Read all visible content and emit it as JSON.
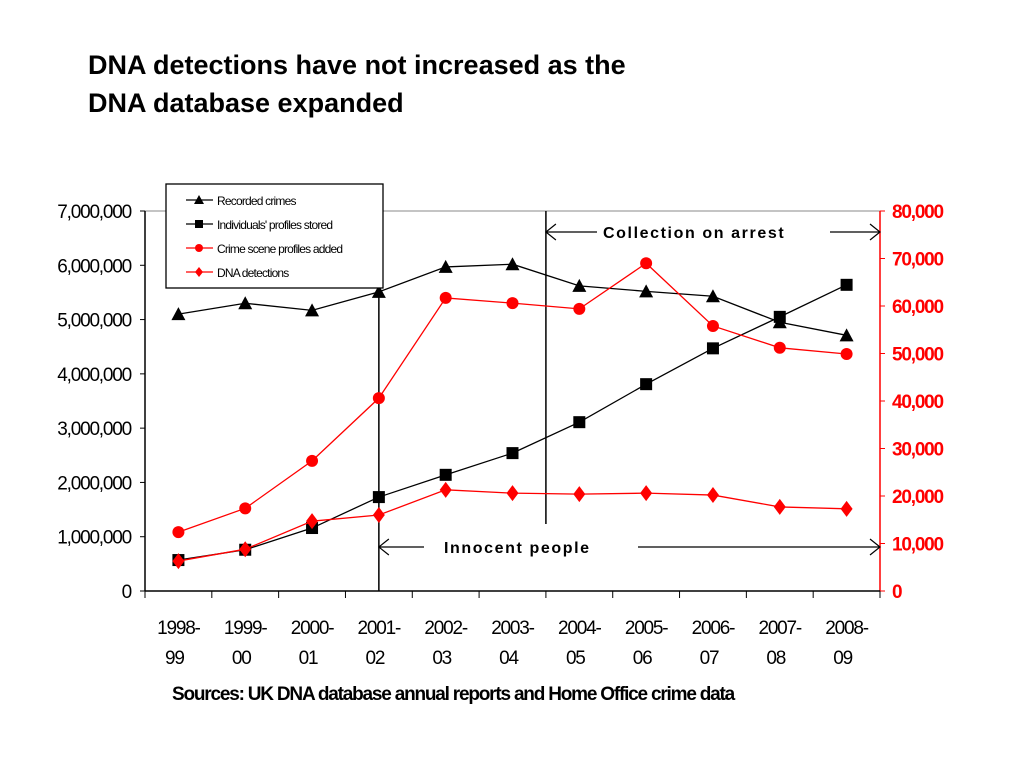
{
  "title_lines": [
    "DNA detections have not increased as the",
    "DNA database expanded"
  ],
  "source": "Sources: UK DNA database annual reports and Home Office crime data",
  "colors": {
    "black_series": "#000000",
    "red_series": "#ff0000",
    "right_axis": "#ff0000"
  },
  "chart_data": {
    "type": "line",
    "categories": [
      [
        "1998-",
        "99"
      ],
      [
        "1999-",
        "00"
      ],
      [
        "2000-",
        "01"
      ],
      [
        "2001-",
        "02"
      ],
      [
        "2002-",
        "03"
      ],
      [
        "2003-",
        "04"
      ],
      [
        "2004-",
        "05"
      ],
      [
        "2005-",
        "06"
      ],
      [
        "2006-",
        "07"
      ],
      [
        "2007-",
        "08"
      ],
      [
        "2008-",
        "09"
      ]
    ],
    "left_axis": {
      "ylim": [
        0,
        7000000
      ],
      "ticks": [
        "0",
        "1,000,000",
        "2,000,000",
        "3,000,000",
        "4,000,000",
        "5,000,000",
        "6,000,000",
        "7,000,000"
      ]
    },
    "right_axis": {
      "ylim": [
        0,
        80000
      ],
      "ticks": [
        "0",
        "10,000",
        "20,000",
        "30,000",
        "40,000",
        "50,000",
        "60,000",
        "70,000",
        "80,000"
      ]
    },
    "legend_placement": "top-left",
    "series": [
      {
        "name": "Recorded crimes",
        "axis": "left",
        "color": "#000000",
        "marker": "triangle",
        "values": [
          5100000,
          5300000,
          5170000,
          5510000,
          5970000,
          6020000,
          5620000,
          5520000,
          5430000,
          4950000,
          4710000
        ]
      },
      {
        "name": "Individuals' profiles stored",
        "axis": "left",
        "color": "#000000",
        "marker": "square",
        "values": [
          570000,
          760000,
          1160000,
          1730000,
          2140000,
          2540000,
          3110000,
          3810000,
          4470000,
          5050000,
          5640000
        ]
      },
      {
        "name": "Crime scene profiles added",
        "axis": "right",
        "color": "#ff0000",
        "marker": "circle",
        "values": [
          12400,
          17400,
          27400,
          40600,
          61700,
          60600,
          59400,
          69000,
          55800,
          51200,
          49900
        ]
      },
      {
        "name": "DNA detections",
        "axis": "right",
        "color": "#ff0000",
        "marker": "diamond",
        "values": [
          6300,
          8800,
          14700,
          16000,
          21300,
          20600,
          20400,
          20600,
          20200,
          17700,
          17300
        ]
      }
    ],
    "annotations": [
      {
        "text": "Collection on arrest",
        "from_category": "2003-04/2004-05 boundary",
        "to": "end"
      },
      {
        "text": "Innocent people",
        "from_category": "2001-02",
        "to": "end"
      }
    ]
  }
}
